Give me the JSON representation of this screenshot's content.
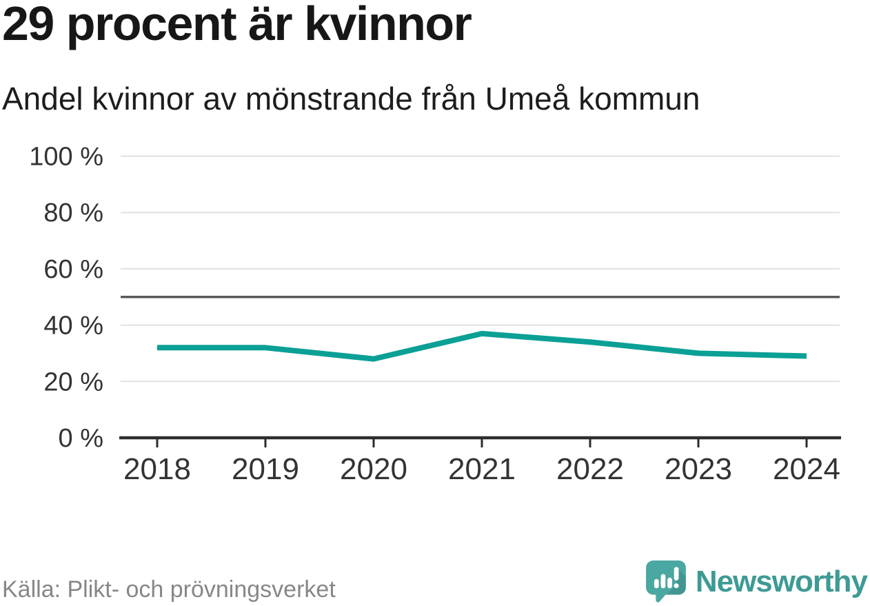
{
  "chart_data": {
    "type": "line",
    "title": "29 procent är kvinnor",
    "subtitle": "Andel kvinnor av mönstrande från Umeå kommun",
    "categories": [
      "2018",
      "2019",
      "2020",
      "2021",
      "2022",
      "2023",
      "2024"
    ],
    "series": [
      {
        "name": "Andel kvinnor av mönstrande",
        "values": [
          32,
          32,
          28,
          37,
          34,
          30,
          29
        ]
      }
    ],
    "unit": "%",
    "ylim": [
      0,
      100
    ],
    "yticks": [
      {
        "value": 0,
        "label": "0 %"
      },
      {
        "value": 20,
        "label": "20 %"
      },
      {
        "value": 40,
        "label": "40 %"
      },
      {
        "value": 60,
        "label": "60 %"
      },
      {
        "value": 80,
        "label": "80 %"
      },
      {
        "value": 100,
        "label": "100 %"
      }
    ],
    "reference_line": {
      "value": 50
    },
    "grid": "horizontal",
    "legend": "none"
  },
  "footer": {
    "source": "Källa: Plikt- och prövningsverket",
    "logo_text": "Newsworthy"
  },
  "colors": {
    "accent_line": "#0aa096",
    "reference_line": "#5a5a5a",
    "gridline": "#e1e1e1",
    "axis_line": "#2d2d2d",
    "axis_text": "#333333",
    "title_text": "#171717",
    "source_text": "#878787",
    "logo_teal": "#4ba7a1",
    "logo_text_teal": "#3e9a94"
  }
}
